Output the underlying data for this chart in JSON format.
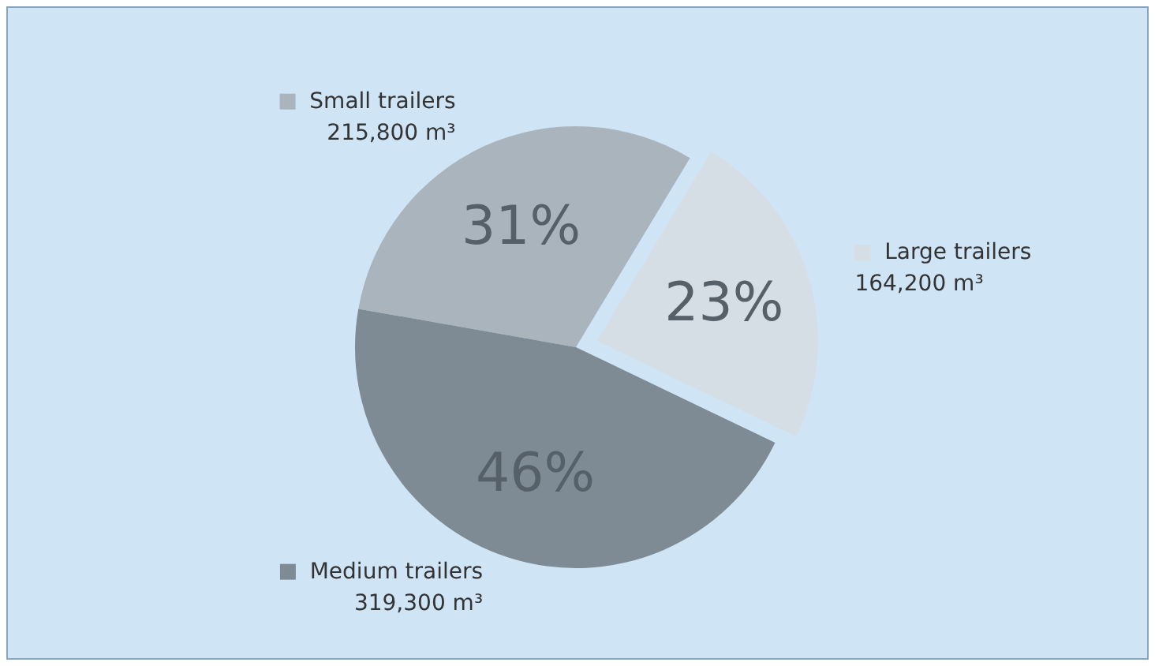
{
  "chart_data": {
    "type": "pie",
    "categories": [
      "Small trailers",
      "Large trailers",
      "Medium trailers"
    ],
    "values": [
      215800,
      164200,
      319300
    ],
    "colors": [
      "#a9b4bc",
      "#d5dee4",
      "#7f8b94"
    ],
    "value_labels": [
      "215,800 m³",
      "164,200 m³",
      "319,300 m³"
    ],
    "annotations": [
      "31%",
      "23%",
      "46%"
    ],
    "legend": "right"
  }
}
